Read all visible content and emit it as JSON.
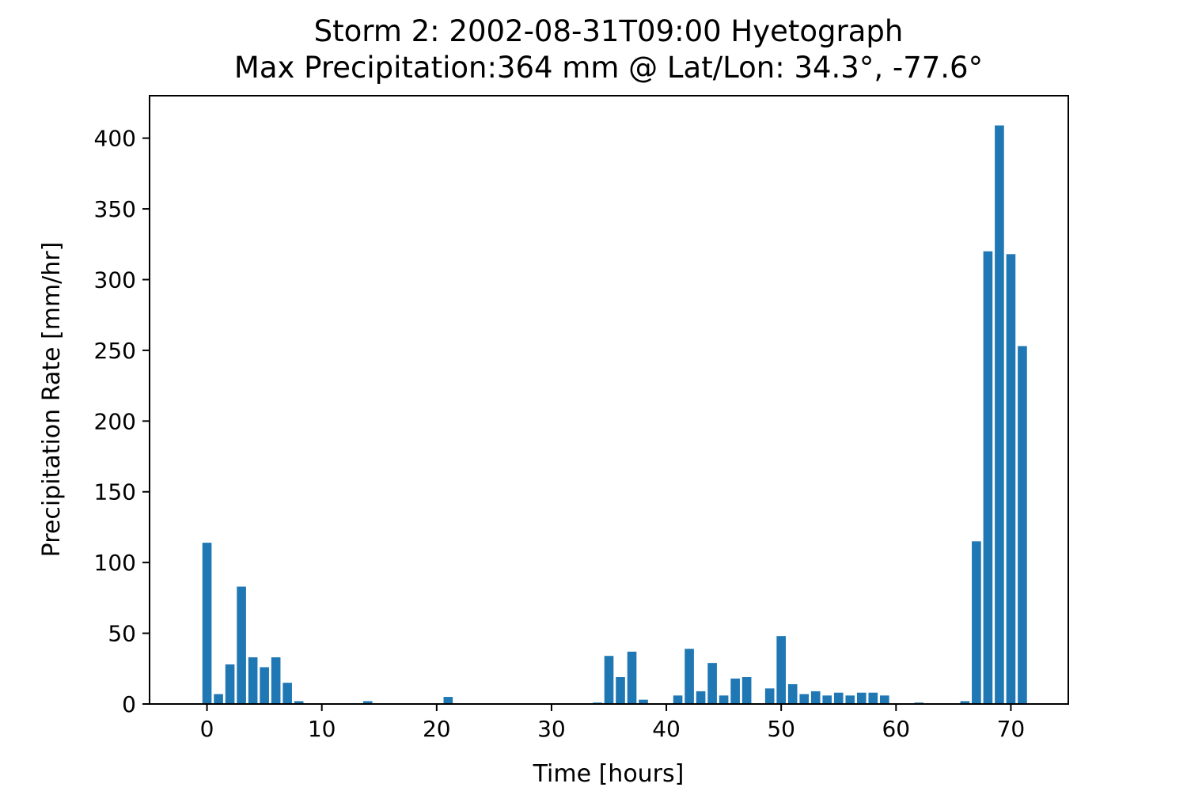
{
  "chart_data": {
    "type": "bar",
    "title": "Storm 2: 2002-08-31T09:00 Hyetograph",
    "subtitle": "Max Precipitation:364 mm @ Lat/Lon:  34.3°, -77.6°",
    "xlabel": "Time [hours]",
    "ylabel": "Precipitation Rate [mm/hr]",
    "xlim": [
      -5,
      75
    ],
    "ylim": [
      0,
      430
    ],
    "xticks": [
      0,
      10,
      20,
      30,
      40,
      50,
      60,
      70
    ],
    "yticks": [
      0,
      50,
      100,
      150,
      200,
      250,
      300,
      350,
      400
    ],
    "grid": false,
    "bar_color": "#1f77b4",
    "x": [
      0,
      1,
      2,
      3,
      4,
      5,
      6,
      7,
      8,
      9,
      10,
      11,
      12,
      13,
      14,
      15,
      16,
      17,
      18,
      19,
      20,
      21,
      22,
      23,
      24,
      25,
      26,
      27,
      28,
      29,
      30,
      31,
      32,
      33,
      34,
      35,
      36,
      37,
      38,
      39,
      40,
      41,
      42,
      43,
      44,
      45,
      46,
      47,
      48,
      49,
      50,
      51,
      52,
      53,
      54,
      55,
      56,
      57,
      58,
      59,
      60,
      61,
      62,
      63,
      64,
      65,
      66,
      67,
      68,
      69,
      70,
      71
    ],
    "values": [
      114,
      7,
      28,
      83,
      33,
      26,
      33,
      15,
      2,
      0,
      0,
      0,
      0,
      0,
      2,
      0,
      0,
      0,
      0,
      0,
      0,
      5,
      0,
      0,
      0,
      0,
      0,
      0,
      0,
      0,
      0,
      0,
      0,
      0,
      1,
      34,
      19,
      37,
      3,
      0,
      0,
      6,
      39,
      9,
      29,
      6,
      18,
      19,
      0,
      11,
      48,
      14,
      7,
      9,
      6,
      8,
      6,
      8,
      8,
      6,
      0,
      0,
      1,
      0,
      0,
      0,
      2,
      115,
      320,
      409,
      318,
      253
    ]
  }
}
